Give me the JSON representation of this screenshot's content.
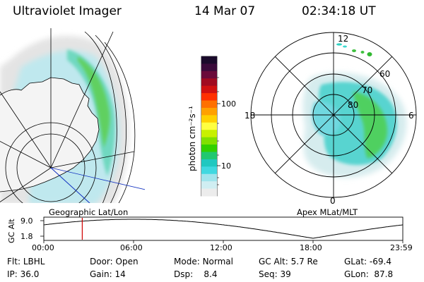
{
  "header": {
    "instrument": "Ultraviolet Imager",
    "date": "14 Mar 07",
    "time": "02:34:18 UT"
  },
  "geographic_panel": {
    "label": "Geographic Lat/Lon"
  },
  "polar_panel": {
    "label": "Apex MLat/MLT",
    "mlt_labels": {
      "top": "12",
      "left": "18",
      "right": "6",
      "bottom": "0"
    },
    "lat_labels": [
      "60",
      "70",
      "80"
    ]
  },
  "colorbar": {
    "unit_label": "photon cm⁻²s⁻¹",
    "ticks": [
      "100",
      "10"
    ],
    "colors_top_to_bottom": [
      "#1a0a2a",
      "#3a0a3a",
      "#6a0a3a",
      "#a00a20",
      "#d01010",
      "#ff3000",
      "#ff7000",
      "#ffa000",
      "#ffd000",
      "#ffff40",
      "#c8f000",
      "#80e000",
      "#30d000",
      "#20c870",
      "#20c8c0",
      "#40d8e0",
      "#a0e4ec",
      "#d0eef2",
      "#ececec"
    ]
  },
  "timeline": {
    "y_label": "GC Alt",
    "y_ticks": [
      "9.0",
      "1.8"
    ],
    "x_ticks": [
      "00:00",
      "06:00",
      "12:00",
      "18:00",
      "23:59"
    ],
    "current_time_hours": 2.57,
    "marker_color": "#d00000"
  },
  "info": {
    "row1": [
      {
        "label": "Flt:",
        "value": "LBHL"
      },
      {
        "label": "Door:",
        "value": "Open"
      },
      {
        "label": "Mode:",
        "value": "Normal"
      },
      {
        "label": "GC Alt:",
        "value": "5.7 Re"
      },
      {
        "label": "GLat:",
        "value": "-69.4"
      }
    ],
    "row2": [
      {
        "label": "IP:",
        "value": "36.0"
      },
      {
        "label": "Gain:",
        "value": "14"
      },
      {
        "label": "Dsp:",
        "value": "8.4"
      },
      {
        "label": "Seq:",
        "value": "39"
      },
      {
        "label": "GLon:",
        "value": "87.8"
      }
    ]
  }
}
